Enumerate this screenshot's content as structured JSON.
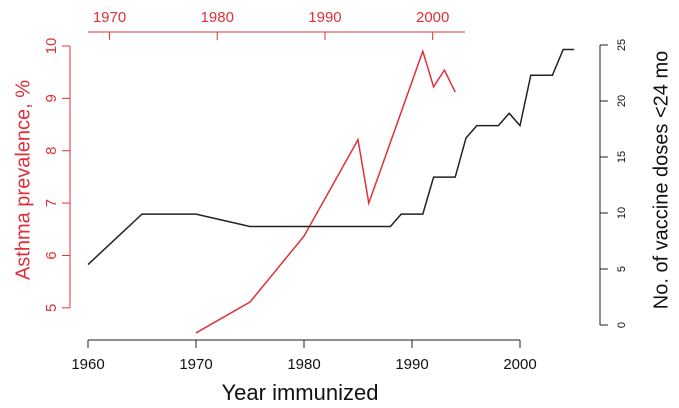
{
  "chart_data": {
    "type": "line",
    "xlabel": "Year immunized",
    "ylabel": "Asthma prevalence, %",
    "y2label": "No. of vaccine doses <24 mo",
    "xlim": [
      1960,
      2005
    ],
    "xticks": [
      1960,
      1970,
      1980,
      1990,
      2000
    ],
    "x2lim": [
      1968,
      2003
    ],
    "x2ticks": [
      1970,
      1980,
      1990,
      2000
    ],
    "x2color": "#e0303a",
    "ylim": [
      4.5,
      10
    ],
    "yticks": [
      5,
      6,
      7,
      8,
      9,
      10
    ],
    "ycolor": "#e0303a",
    "y2lim": [
      0,
      25
    ],
    "y2ticks": [
      0,
      5,
      10,
      15,
      20,
      25
    ],
    "series": [
      {
        "color": "#e0303a",
        "axis": "y",
        "x": [
          1970,
          1975,
          1980,
          1985,
          1986,
          1991,
          1992,
          1993,
          1994
        ],
        "values": [
          4.52,
          5.11,
          6.37,
          8.21,
          7.0,
          9.9,
          9.22,
          9.54,
          9.12
        ]
      },
      {
        "color": "#222222",
        "axis": "y2",
        "x": [
          1960,
          1965,
          1970,
          1975,
          1988,
          1989,
          1991,
          1992,
          1994,
          1995,
          1996,
          1998,
          1999,
          2000,
          2001,
          2003,
          2004,
          2005
        ],
        "values": [
          5.4,
          9.9,
          9.9,
          8.8,
          8.8,
          9.9,
          9.9,
          13.2,
          13.2,
          16.7,
          17.8,
          17.8,
          18.9,
          17.8,
          22.3,
          22.3,
          24.6,
          24.6
        ]
      }
    ]
  }
}
